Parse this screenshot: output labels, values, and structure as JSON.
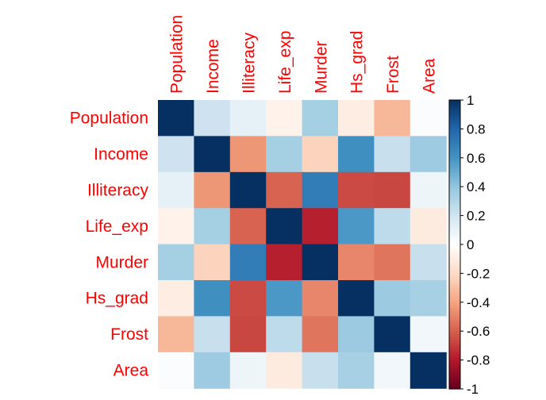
{
  "chart_data": {
    "type": "heatmap",
    "variables": [
      "Population",
      "Income",
      "Illiteracy",
      "Life_exp",
      "Murder",
      "Hs_grad",
      "Frost",
      "Area"
    ],
    "matrix": [
      [
        1.0,
        0.21,
        0.11,
        -0.07,
        0.34,
        -0.1,
        -0.33,
        0.02
      ],
      [
        0.21,
        1.0,
        -0.44,
        0.34,
        -0.23,
        0.62,
        0.23,
        0.36
      ],
      [
        0.11,
        -0.44,
        1.0,
        -0.59,
        0.7,
        -0.66,
        -0.67,
        0.08
      ],
      [
        -0.07,
        0.34,
        -0.59,
        1.0,
        -0.78,
        0.58,
        0.26,
        -0.11
      ],
      [
        0.34,
        -0.23,
        0.7,
        -0.78,
        1.0,
        -0.49,
        -0.54,
        0.23
      ],
      [
        -0.1,
        0.62,
        -0.66,
        0.58,
        -0.49,
        1.0,
        0.37,
        0.33
      ],
      [
        -0.33,
        0.23,
        -0.67,
        0.26,
        -0.54,
        0.37,
        1.0,
        0.06
      ],
      [
        0.02,
        0.36,
        0.08,
        -0.11,
        0.23,
        0.33,
        0.06,
        1.0
      ]
    ],
    "colorbar": {
      "range": [
        -1,
        1
      ],
      "ticks": [
        "1",
        "0.8",
        "0.6",
        "0.4",
        "0.2",
        "0",
        "-0.2",
        "-0.4",
        "-0.6",
        "-0.8",
        "-1"
      ]
    },
    "label_color": "#ff0000",
    "colors": {
      "negative": "#67001f",
      "neutral": "#ffffff",
      "positive": "#053061"
    }
  }
}
